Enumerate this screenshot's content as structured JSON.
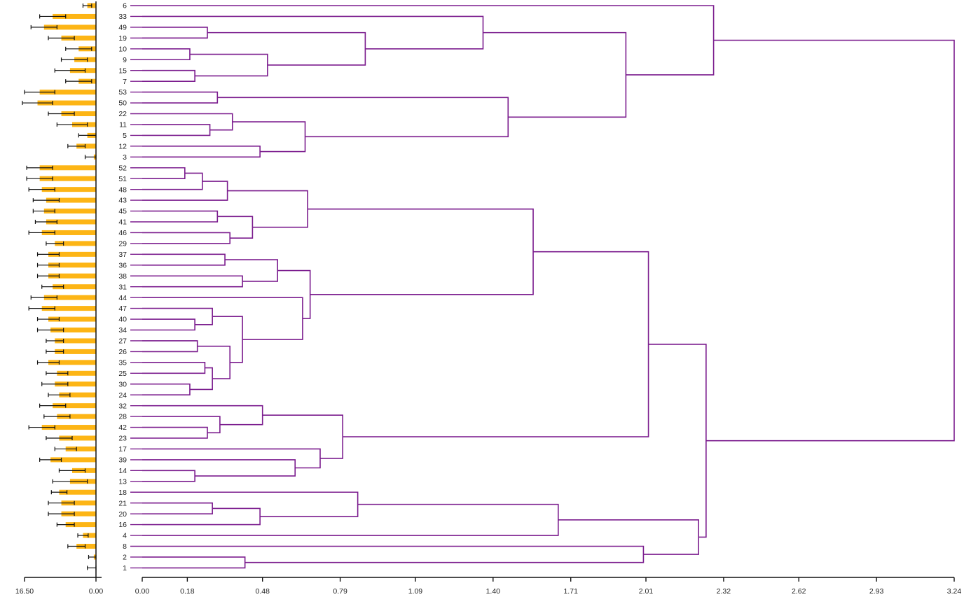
{
  "colors": {
    "bar": "#FDB515",
    "error_bar": "#111111",
    "dendrogram": "#7B1C8E",
    "axis": "#111111",
    "stub": "#7B1C8E"
  },
  "chart_data": [
    {
      "type": "bar",
      "orientation": "horizontal",
      "direction": "right-to-left",
      "x_ticks": [
        "16.50",
        "0.00"
      ],
      "xlim": [
        0,
        16.5
      ],
      "categories": [
        "6",
        "33",
        "49",
        "19",
        "10",
        "9",
        "15",
        "7",
        "53",
        "50",
        "22",
        "11",
        "5",
        "12",
        "3",
        "52",
        "51",
        "48",
        "43",
        "45",
        "41",
        "46",
        "29",
        "37",
        "36",
        "38",
        "31",
        "44",
        "47",
        "40",
        "34",
        "27",
        "26",
        "35",
        "25",
        "30",
        "24",
        "32",
        "28",
        "42",
        "23",
        "17",
        "39",
        "14",
        "13",
        "18",
        "21",
        "20",
        "16",
        "4",
        "8",
        "2",
        "1"
      ],
      "values": [
        2.0,
        10.0,
        12.0,
        8.0,
        4.0,
        5.0,
        6.0,
        4.0,
        13.0,
        13.5,
        8.0,
        5.5,
        2.0,
        4.5,
        0.5,
        13.0,
        13.0,
        12.5,
        11.5,
        12.0,
        11.5,
        12.5,
        9.5,
        11.0,
        11.0,
        11.0,
        10.0,
        12.0,
        12.5,
        11.0,
        10.5,
        9.5,
        9.5,
        11.0,
        9.0,
        9.5,
        8.5,
        10.0,
        9.0,
        12.5,
        8.5,
        7.0,
        10.5,
        5.5,
        6.0,
        8.5,
        8.0,
        8.0,
        7.0,
        3.0,
        4.5,
        0.5,
        0.0
      ],
      "errors": [
        1.0,
        3.0,
        3.0,
        3.0,
        3.0,
        3.0,
        3.5,
        3.0,
        3.5,
        3.5,
        3.0,
        3.5,
        2.0,
        2.0,
        2.0,
        3.0,
        3.0,
        3.0,
        3.0,
        2.5,
        2.5,
        3.0,
        2.0,
        2.5,
        2.5,
        2.5,
        2.5,
        3.0,
        3.0,
        2.5,
        3.0,
        2.0,
        2.0,
        2.5,
        2.5,
        3.0,
        2.5,
        3.0,
        3.0,
        3.0,
        3.0,
        2.5,
        2.5,
        3.0,
        4.0,
        1.8,
        3.0,
        3.0,
        2.0,
        1.2,
        2.0,
        1.2,
        2.0
      ]
    },
    {
      "type": "dendrogram",
      "orientation": "left-to-right",
      "x_ticks": [
        "0.00",
        "0.18",
        "0.48",
        "0.79",
        "1.09",
        "1.40",
        "1.71",
        "2.01",
        "2.32",
        "2.62",
        "2.93",
        "3.24"
      ],
      "xlim": [
        0,
        3.24
      ],
      "leaves": [
        "6",
        "33",
        "49",
        "19",
        "10",
        "9",
        "15",
        "7",
        "53",
        "50",
        "22",
        "11",
        "5",
        "12",
        "3",
        "52",
        "51",
        "48",
        "43",
        "45",
        "41",
        "46",
        "29",
        "37",
        "36",
        "38",
        "31",
        "44",
        "47",
        "40",
        "34",
        "27",
        "26",
        "35",
        "25",
        "30",
        "24",
        "32",
        "28",
        "42",
        "23",
        "17",
        "39",
        "14",
        "13",
        "18",
        "21",
        "20",
        "16",
        "4",
        "8",
        "2",
        "1"
      ],
      "merges": [
        {
          "id": "A1",
          "children": [
            "49",
            "19"
          ],
          "height": 0.26
        },
        {
          "id": "A2",
          "children": [
            "10",
            "9"
          ],
          "height": 0.19
        },
        {
          "id": "A3",
          "children": [
            "15",
            "7"
          ],
          "height": 0.21
        },
        {
          "id": "A4",
          "children": [
            "A2",
            "A3"
          ],
          "height": 0.5
        },
        {
          "id": "A5",
          "children": [
            "A1",
            "A4"
          ],
          "height": 0.89
        },
        {
          "id": "A6",
          "children": [
            "33",
            "A5"
          ],
          "height": 1.36
        },
        {
          "id": "B1",
          "children": [
            "53",
            "50"
          ],
          "height": 0.3
        },
        {
          "id": "B2",
          "children": [
            "11",
            "5"
          ],
          "height": 0.27
        },
        {
          "id": "B3",
          "children": [
            "22",
            "B2"
          ],
          "height": 0.36
        },
        {
          "id": "B4",
          "children": [
            "12",
            "3"
          ],
          "height": 0.47
        },
        {
          "id": "B5",
          "children": [
            "B3",
            "B4"
          ],
          "height": 0.65
        },
        {
          "id": "B6",
          "children": [
            "B1",
            "B5"
          ],
          "height": 1.46
        },
        {
          "id": "C1",
          "children": [
            "A6",
            "B6"
          ],
          "height": 1.93
        },
        {
          "id": "C2",
          "children": [
            "6",
            "C1"
          ],
          "height": 2.28
        },
        {
          "id": "D1",
          "children": [
            "52",
            "51"
          ],
          "height": 0.17
        },
        {
          "id": "D2",
          "children": [
            "D1",
            "48"
          ],
          "height": 0.24
        },
        {
          "id": "D3",
          "children": [
            "D2",
            "43"
          ],
          "height": 0.34
        },
        {
          "id": "D4",
          "children": [
            "45",
            "41"
          ],
          "height": 0.3
        },
        {
          "id": "D5",
          "children": [
            "46",
            "29"
          ],
          "height": 0.35
        },
        {
          "id": "D6",
          "children": [
            "D4",
            "D5"
          ],
          "height": 0.44
        },
        {
          "id": "D7",
          "children": [
            "D3",
            "D6"
          ],
          "height": 0.66
        },
        {
          "id": "E1",
          "children": [
            "37",
            "36"
          ],
          "height": 0.33
        },
        {
          "id": "E2",
          "children": [
            "38",
            "31"
          ],
          "height": 0.4
        },
        {
          "id": "E3",
          "children": [
            "E1",
            "E2"
          ],
          "height": 0.54
        },
        {
          "id": "E4",
          "children": [
            "40",
            "34"
          ],
          "height": 0.21
        },
        {
          "id": "E5",
          "children": [
            "47",
            "E4"
          ],
          "height": 0.28
        },
        {
          "id": "E6",
          "children": [
            "27",
            "26"
          ],
          "height": 0.22
        },
        {
          "id": "E7",
          "children": [
            "35",
            "25"
          ],
          "height": 0.25
        },
        {
          "id": "E8",
          "children": [
            "30",
            "24"
          ],
          "height": 0.19
        },
        {
          "id": "E9",
          "children": [
            "E7",
            "E8"
          ],
          "height": 0.28
        },
        {
          "id": "E10",
          "children": [
            "E6",
            "E9"
          ],
          "height": 0.35
        },
        {
          "id": "E11",
          "children": [
            "E5",
            "E10"
          ],
          "height": 0.4
        },
        {
          "id": "E12",
          "children": [
            "44",
            "E11"
          ],
          "height": 0.64
        },
        {
          "id": "E13",
          "children": [
            "E3",
            "E12"
          ],
          "height": 0.67
        },
        {
          "id": "F1",
          "children": [
            "D7",
            "E13"
          ],
          "height": 1.56
        },
        {
          "id": "G1",
          "children": [
            "42",
            "23"
          ],
          "height": 0.26
        },
        {
          "id": "G2",
          "children": [
            "28",
            "G1"
          ],
          "height": 0.31
        },
        {
          "id": "G3",
          "children": [
            "32",
            "G2"
          ],
          "height": 0.48
        },
        {
          "id": "G4",
          "children": [
            "14",
            "13"
          ],
          "height": 0.21
        },
        {
          "id": "G5",
          "children": [
            "39",
            "G4"
          ],
          "height": 0.61
        },
        {
          "id": "G6",
          "children": [
            "17",
            "G5"
          ],
          "height": 0.71
        },
        {
          "id": "G7",
          "children": [
            "G3",
            "G6"
          ],
          "height": 0.8
        },
        {
          "id": "H1",
          "children": [
            "F1",
            "G7"
          ],
          "height": 2.02
        },
        {
          "id": "I1",
          "children": [
            "21",
            "20"
          ],
          "height": 0.28
        },
        {
          "id": "I2",
          "children": [
            "I1",
            "16"
          ],
          "height": 0.47
        },
        {
          "id": "I3",
          "children": [
            "18",
            "I2"
          ],
          "height": 0.86
        },
        {
          "id": "I4",
          "children": [
            "I3",
            "4"
          ],
          "height": 1.66
        },
        {
          "id": "J1",
          "children": [
            "2",
            "1"
          ],
          "height": 0.41
        },
        {
          "id": "J2",
          "children": [
            "8",
            "J1"
          ],
          "height": 2.0
        },
        {
          "id": "K1",
          "children": [
            "I4",
            "J2"
          ],
          "height": 2.22
        },
        {
          "id": "K2",
          "children": [
            "H1",
            "K1"
          ],
          "height": 2.25
        },
        {
          "id": "R",
          "children": [
            "C2",
            "K2"
          ],
          "height": 3.24
        }
      ]
    }
  ]
}
